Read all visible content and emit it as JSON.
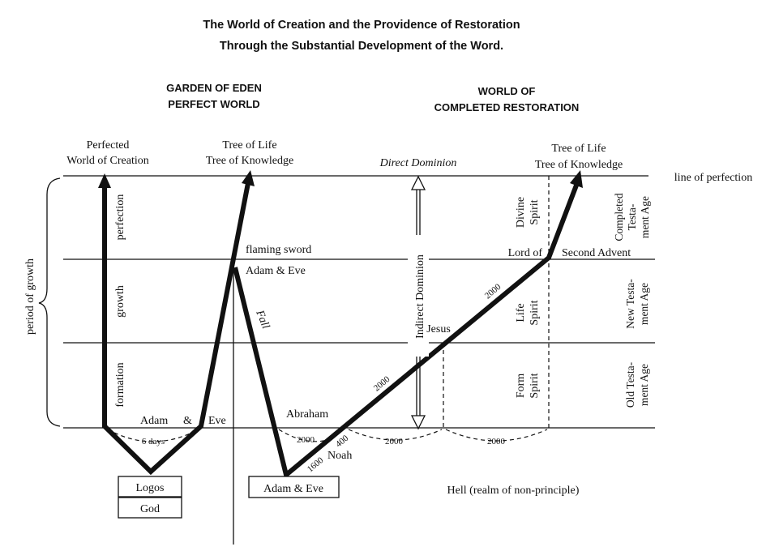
{
  "title": {
    "line1": "The World of Creation and the Providence of Restoration",
    "line2": "Through the Substantial Development of the Word."
  },
  "headings": {
    "eden_line1": "GARDEN OF EDEN",
    "eden_line2": "PERFECT WORLD",
    "restoration_line1": "WORLD OF",
    "restoration_line2": "COMPLETED RESTORATION"
  },
  "labels": {
    "perfected_world_1": "Perfected",
    "perfected_world_2": "World of Creation",
    "tree_left_1": "Tree of Life",
    "tree_left_2": "Tree of Knowledge",
    "direct_dominion": "Direct Dominion",
    "tree_right_1": "Tree of Life",
    "tree_right_2": "Tree of Knowledge",
    "line_of_perfection": "line of perfection",
    "period_of_growth": "period of growth",
    "perfection": "perfection",
    "growth": "growth",
    "formation": "formation",
    "flaming_sword": "flaming sword",
    "adam_eve_top": "Adam & Eve",
    "fall": "Fall",
    "indirect_dominion": "Indirect Dominion",
    "divine_spirit_1": "Divine",
    "divine_spirit_2": "Spirit",
    "life_spirit_1": "Life",
    "life_spirit_2": "Spirit",
    "form_spirit_1": "Form",
    "form_spirit_2": "Spirit",
    "lord_of": "Lord of",
    "second_advent": "Second Advent",
    "completed_age_1": "Completed",
    "completed_age_2": "Testa-",
    "completed_age_3": "ment Age",
    "new_age_1": "New Testa-",
    "new_age_2": "ment Age",
    "old_age_1": "Old Testa-",
    "old_age_2": "ment Age",
    "jesus": "Jesus",
    "abraham": "Abraham",
    "noah": "Noah",
    "adam_eve_bottom_left_1": "Adam",
    "adam_eve_bottom_left_amp": "&",
    "adam_eve_bottom_left_2": "Eve",
    "six_days": "6 days",
    "n2000_a": "2000",
    "n2000_b": "2000",
    "n2000_c": "2000",
    "n2000_d": "2000",
    "n2000_e": "2000",
    "n2000_f": "2000",
    "n400": "400",
    "n1600": "1600",
    "hell": "Hell (realm of non-principle)",
    "logos": "Logos",
    "god": "God",
    "adam_eve_box": "Adam & Eve"
  }
}
